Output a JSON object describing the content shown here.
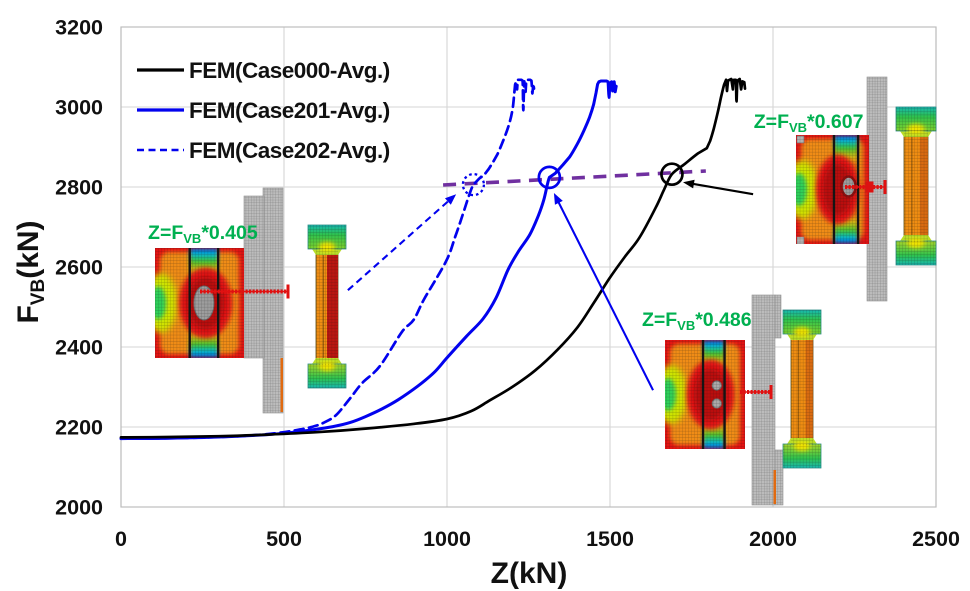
{
  "chart_data": {
    "type": "line",
    "title": "",
    "xlabel": "Z(kN)",
    "ylabel_parts": {
      "pre": "F",
      "sub": "VB",
      "post": "(kN)"
    },
    "xlim": [
      0,
      2500
    ],
    "ylim": [
      2000,
      3200
    ],
    "xticks": [
      "0",
      "500",
      "1000",
      "1500",
      "2000",
      "2500"
    ],
    "yticks": [
      "2000",
      "2200",
      "2400",
      "2600",
      "2800",
      "3000",
      "3200"
    ],
    "grid": true,
    "legend_position": "top-left-inside",
    "colors": {
      "blue": "#0202ee",
      "black": "#000000",
      "purple": "#7030A0",
      "green": "#00B050",
      "grid": "#d6d6d6",
      "border": "#bdbdbd",
      "text": "#111111"
    },
    "series": [
      {
        "name": "FEM(Case000-Avg.)",
        "color": "#000000",
        "style": "solid",
        "points": [
          [
            0,
            2174
          ],
          [
            150,
            2175
          ],
          [
            300,
            2177
          ],
          [
            450,
            2181
          ],
          [
            600,
            2187
          ],
          [
            750,
            2196
          ],
          [
            900,
            2208
          ],
          [
            1000,
            2220
          ],
          [
            1075,
            2240
          ],
          [
            1130,
            2266
          ],
          [
            1200,
            2300
          ],
          [
            1270,
            2341
          ],
          [
            1340,
            2394
          ],
          [
            1400,
            2449
          ],
          [
            1450,
            2510
          ],
          [
            1497,
            2570
          ],
          [
            1545,
            2625
          ],
          [
            1590,
            2673
          ],
          [
            1640,
            2748
          ],
          [
            1665,
            2792
          ],
          [
            1690,
            2832
          ],
          [
            1730,
            2858
          ],
          [
            1770,
            2884
          ],
          [
            1797,
            2897
          ],
          [
            1807,
            2915
          ],
          [
            1818,
            2945
          ],
          [
            1830,
            2985
          ],
          [
            1840,
            3022
          ],
          [
            1850,
            3056
          ],
          [
            1856,
            3068
          ],
          [
            1859,
            3040
          ],
          [
            1862,
            3066
          ],
          [
            1872,
            3070
          ],
          [
            1877,
            3044
          ],
          [
            1879,
            3067
          ],
          [
            1880,
            3068
          ],
          [
            1886,
            3068
          ],
          [
            1888,
            3014
          ],
          [
            1891,
            3066
          ],
          [
            1898,
            3070
          ],
          [
            1902,
            3044
          ],
          [
            1906,
            3064
          ],
          [
            1912,
            3062
          ],
          [
            1914,
            3046
          ]
        ]
      },
      {
        "name": "FEM(Case201-Avg.)",
        "color": "#0202ee",
        "style": "solid",
        "points": [
          [
            0,
            2171
          ],
          [
            150,
            2172
          ],
          [
            300,
            2175
          ],
          [
            450,
            2181
          ],
          [
            550,
            2189
          ],
          [
            650,
            2201
          ],
          [
            702,
            2211
          ],
          [
            750,
            2226
          ],
          [
            800,
            2245
          ],
          [
            850,
            2268
          ],
          [
            910,
            2302
          ],
          [
            960,
            2336
          ],
          [
            1000,
            2373
          ],
          [
            1060,
            2427
          ],
          [
            1110,
            2470
          ],
          [
            1150,
            2522
          ],
          [
            1187,
            2593
          ],
          [
            1220,
            2640
          ],
          [
            1254,
            2681
          ],
          [
            1280,
            2728
          ],
          [
            1297,
            2768
          ],
          [
            1314,
            2824
          ],
          [
            1332,
            2834
          ],
          [
            1356,
            2856
          ],
          [
            1376,
            2875
          ],
          [
            1400,
            2908
          ],
          [
            1420,
            2941
          ],
          [
            1437,
            2974
          ],
          [
            1450,
            3007
          ],
          [
            1457,
            3035
          ],
          [
            1462,
            3057
          ],
          [
            1466,
            3063
          ],
          [
            1472,
            3065
          ],
          [
            1490,
            3065
          ],
          [
            1494,
            3063
          ],
          [
            1497,
            3024
          ],
          [
            1500,
            3060
          ],
          [
            1505,
            3063
          ],
          [
            1508,
            3040
          ],
          [
            1510,
            3062
          ],
          [
            1513,
            3063
          ],
          [
            1516,
            3038
          ],
          [
            1519,
            3052
          ]
        ]
      },
      {
        "name": "FEM(Case202-Avg.)",
        "color": "#0202ee",
        "style": "dashed",
        "points": [
          [
            0,
            2171
          ],
          [
            150,
            2172
          ],
          [
            300,
            2175
          ],
          [
            400,
            2179
          ],
          [
            470,
            2184
          ],
          [
            530,
            2191
          ],
          [
            580,
            2199
          ],
          [
            620,
            2210
          ],
          [
            660,
            2230
          ],
          [
            702,
            2271
          ],
          [
            740,
            2310
          ],
          [
            794,
            2352
          ],
          [
            862,
            2438
          ],
          [
            898,
            2468
          ],
          [
            930,
            2520
          ],
          [
            997,
            2614
          ],
          [
            1025,
            2675
          ],
          [
            1048,
            2730
          ],
          [
            1066,
            2775
          ],
          [
            1081,
            2806
          ],
          [
            1100,
            2822
          ],
          [
            1113,
            2829
          ],
          [
            1128,
            2845
          ],
          [
            1141,
            2862
          ],
          [
            1155,
            2882
          ],
          [
            1165,
            2901
          ],
          [
            1181,
            2934
          ],
          [
            1194,
            2967
          ],
          [
            1202,
            3000
          ],
          [
            1206,
            3032
          ],
          [
            1209,
            3056
          ],
          [
            1212,
            3064
          ],
          [
            1215,
            3044
          ],
          [
            1217,
            3066
          ],
          [
            1218,
            3068
          ],
          [
            1228,
            3068
          ],
          [
            1232,
            3066
          ],
          [
            1234,
            2992
          ],
          [
            1237,
            3064
          ],
          [
            1241,
            3038
          ],
          [
            1243,
            3064
          ],
          [
            1245,
            3068
          ],
          [
            1255,
            3068
          ],
          [
            1259,
            3066
          ],
          [
            1262,
            3034
          ],
          [
            1265,
            3058
          ],
          [
            1267,
            3046
          ]
        ]
      }
    ],
    "trend_line": {
      "color": "#7030A0",
      "style": "dashed",
      "from": [
        988,
        2805
      ],
      "to": [
        1794,
        2840
      ]
    },
    "markers": [
      {
        "x": 1081,
        "y": 2806,
        "style": "dotted",
        "color": "#0202ee",
        "name": "marker-case202"
      },
      {
        "x": 1314,
        "y": 2824,
        "style": "solid",
        "color": "#0202ee",
        "name": "marker-case201"
      },
      {
        "x": 1690,
        "y": 2832,
        "style": "solid",
        "color": "#000000",
        "name": "marker-case000"
      }
    ],
    "arrows": [
      {
        "color": "#0202ee",
        "style": "dashed",
        "from": [
          696,
          2542
        ],
        "to": [
          1028,
          2782
        ],
        "name": "arrow-case202"
      },
      {
        "color": "#0202ee",
        "style": "solid",
        "from": [
          1632,
          2292
        ],
        "to": [
          1328,
          2785
        ],
        "name": "arrow-case201"
      },
      {
        "color": "#000000",
        "style": "solid",
        "from": [
          1939,
          2782
        ],
        "to": [
          1724,
          2812
        ],
        "name": "arrow-case000"
      }
    ],
    "annotations": [
      {
        "parts": {
          "pre": "Z=F",
          "sub": "VB",
          "post": "*0.405"
        },
        "color": "#00B050",
        "x": 83,
        "y": 2670,
        "name": "label-ratio-case202"
      },
      {
        "parts": {
          "pre": "Z=F",
          "sub": "VB",
          "post": "*0.486"
        },
        "color": "#00B050",
        "x": 1598,
        "y": 2452,
        "name": "label-ratio-case201"
      },
      {
        "parts": {
          "pre": "Z=F",
          "sub": "VB",
          "post": "*0.607"
        },
        "color": "#00B050",
        "x": 1941,
        "y": 2947,
        "name": "label-ratio-case000"
      }
    ],
    "fem_images": [
      {
        "name": "fem-joint-contour-case202",
        "desc": "stress contour of joint section with meshed plate"
      },
      {
        "name": "fem-bolt-contour-case202",
        "desc": "stress contour of bolt"
      },
      {
        "name": "fem-joint-contour-case201",
        "desc": "stress contour of joint section with meshed plate"
      },
      {
        "name": "fem-bolt-contour-case201",
        "desc": "stress contour of bolt"
      },
      {
        "name": "fem-joint-contour-case000",
        "desc": "stress contour of joint section with meshed plate"
      },
      {
        "name": "fem-bolt-contour-case000",
        "desc": "stress contour of bolt"
      }
    ]
  }
}
